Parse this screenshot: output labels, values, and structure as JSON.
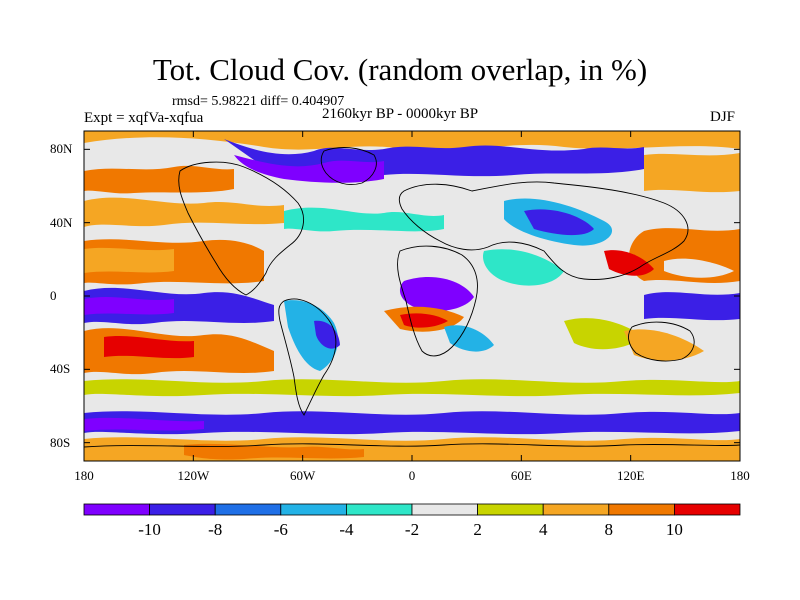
{
  "title": "Tot. Cloud Cov. (random overlap, in %)",
  "stats": "rmsd= 5.98221 diff= 0.404907",
  "experiment": "Expt = xqfVa-xqfua",
  "period": "2160kyr BP - 0000kyr BP",
  "season": "DJF",
  "axes": {
    "x_ticks": [
      "180",
      "120W",
      "60W",
      "0",
      "60E",
      "120E",
      "180"
    ],
    "y_ticks": [
      "80N",
      "40N",
      "0",
      "40S",
      "80S"
    ]
  },
  "colorbar": {
    "labels": [
      "-10",
      "-8",
      "-6",
      "-4",
      "-2",
      "2",
      "4",
      "8",
      "10"
    ],
    "colors": [
      "#7f00ff",
      "#3b1fe6",
      "#1f6fe6",
      "#23b2e6",
      "#2ee6c8",
      "#e8e8e8",
      "#c8d400",
      "#f5a623",
      "#f07800",
      "#e60000"
    ]
  },
  "colors": {
    "land_outline": "#000000",
    "background": "#ffffff"
  }
}
